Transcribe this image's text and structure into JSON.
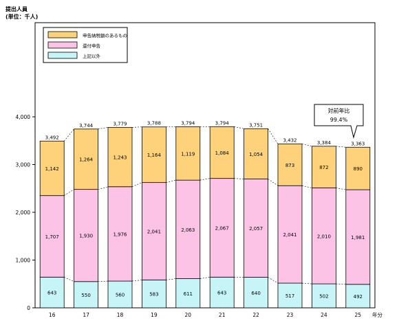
{
  "header": {
    "line1": "提出人員",
    "line2": "(単位：千人)"
  },
  "legend": {
    "items": [
      {
        "label": "申告納税額のあるもの",
        "color": "#fdd27a"
      },
      {
        "label": "還付申告",
        "color": "#fcc3e7"
      },
      {
        "label": "上記以外",
        "color": "#c7f4f6"
      }
    ]
  },
  "callout": {
    "line1": "対前年比",
    "line2": "99.4%"
  },
  "chart_data": {
    "type": "bar",
    "stacked": true,
    "categories": [
      "16",
      "17",
      "18",
      "19",
      "20",
      "21",
      "22",
      "23",
      "24",
      "25"
    ],
    "x_unit_label": "年分",
    "ylim": [
      0,
      4000
    ],
    "yticks": [
      0,
      1000,
      2000,
      3000,
      4000
    ],
    "ytick_labels": [
      "0",
      "1,000",
      "2,000",
      "3,000",
      "4,000"
    ],
    "series": [
      {
        "name": "上記以外",
        "color": "#c7f4f6",
        "values": [
          643,
          550,
          560,
          583,
          611,
          643,
          640,
          517,
          502,
          492
        ],
        "labels": [
          "643",
          "550",
          "560",
          "583",
          "611",
          "643",
          "640",
          "517",
          "502",
          "492"
        ]
      },
      {
        "name": "還付申告",
        "color": "#fcc3e7",
        "values": [
          1707,
          1930,
          1976,
          2041,
          2063,
          2067,
          2057,
          2041,
          2010,
          1981
        ],
        "labels": [
          "1,707",
          "1,930",
          "1,976",
          "2,041",
          "2,063",
          "2,067",
          "2,057",
          "2,041",
          "2,010",
          "1,981"
        ]
      },
      {
        "name": "申告納税額のあるもの",
        "color": "#fdd27a",
        "values": [
          1142,
          1264,
          1243,
          1164,
          1119,
          1084,
          1054,
          873,
          872,
          890
        ],
        "labels": [
          "1,142",
          "1,264",
          "1,243",
          "1,164",
          "1,119",
          "1,084",
          "1,054",
          "873",
          "872",
          "890"
        ]
      }
    ],
    "totals": [
      3492,
      3744,
      3779,
      3788,
      3794,
      3794,
      3751,
      3432,
      3384,
      3363
    ],
    "total_labels": [
      "3,492",
      "3,744",
      "3,779",
      "3,788",
      "3,794",
      "3,794",
      "3,751",
      "3,432",
      "3,384",
      "3,363"
    ]
  }
}
